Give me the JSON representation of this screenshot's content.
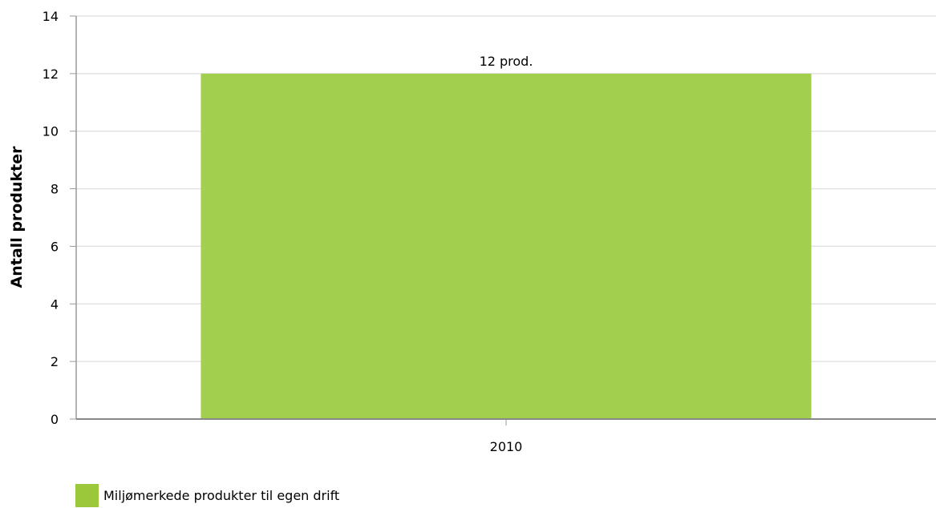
{
  "colors": {
    "bar": "#a3cf4f",
    "legend_swatch": "#9bc83b",
    "grid": "#e3e3e3",
    "axis": "#999999",
    "xaxis": "#888888"
  },
  "chart_data": {
    "type": "bar",
    "categories": [
      "2010"
    ],
    "series": [
      {
        "name": "Miljømerkede produkter til egen drift",
        "values": [
          12
        ],
        "data_labels": [
          "12 prod."
        ]
      }
    ],
    "ylabel": "Antall produkter",
    "xlabel": "",
    "ylim": [
      0,
      14
    ],
    "yticks": [
      0,
      2,
      4,
      6,
      8,
      10,
      12,
      14
    ],
    "grid": true,
    "legend_position": "bottom-left"
  }
}
